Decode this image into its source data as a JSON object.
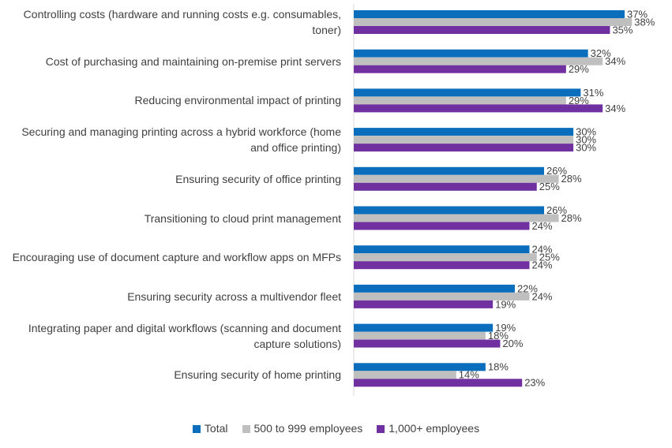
{
  "chart_data": {
    "type": "bar",
    "orientation": "horizontal",
    "categories": [
      "Controlling costs (hardware and running costs e.g. consumables, toner)",
      "Cost of purchasing and maintaining on-premise print servers",
      "Reducing environmental impact of printing",
      "Securing and managing printing across a hybrid workforce (home and office printing)",
      "Ensuring security of office printing",
      "Transitioning to cloud print management",
      "Encouraging use of document capture and workflow apps on MFPs",
      "Ensuring security across a multivendor fleet",
      "Integrating paper and digital workflows (scanning and document capture solutions)",
      "Ensuring security of home printing"
    ],
    "series": [
      {
        "name": "Total",
        "color": "#0a6ebd",
        "values": [
          37,
          32,
          31,
          30,
          26,
          26,
          24,
          22,
          19,
          18
        ],
        "value_labels": [
          "37%",
          "32%",
          "31%",
          "30%",
          "26%",
          "26%",
          "24%",
          "22%",
          "19%",
          "18%"
        ]
      },
      {
        "name": "500 to 999 employees",
        "color": "#bfbfbf",
        "values": [
          38,
          34,
          29,
          30,
          28,
          28,
          25,
          24,
          18,
          14
        ],
        "value_labels": [
          "38%",
          "34%",
          "29%",
          "30%",
          "28%",
          "28%",
          "25%",
          "24%",
          "18%",
          "14%"
        ]
      },
      {
        "name": "1,000+ employees",
        "color": "#7030a0",
        "values": [
          35,
          29,
          34,
          30,
          25,
          24,
          24,
          19,
          20,
          23
        ],
        "value_labels": [
          "35%",
          "29%",
          "34%",
          "30%",
          "25%",
          "24%",
          "24%",
          "19%",
          "20%",
          "23%"
        ]
      }
    ]
  }
}
